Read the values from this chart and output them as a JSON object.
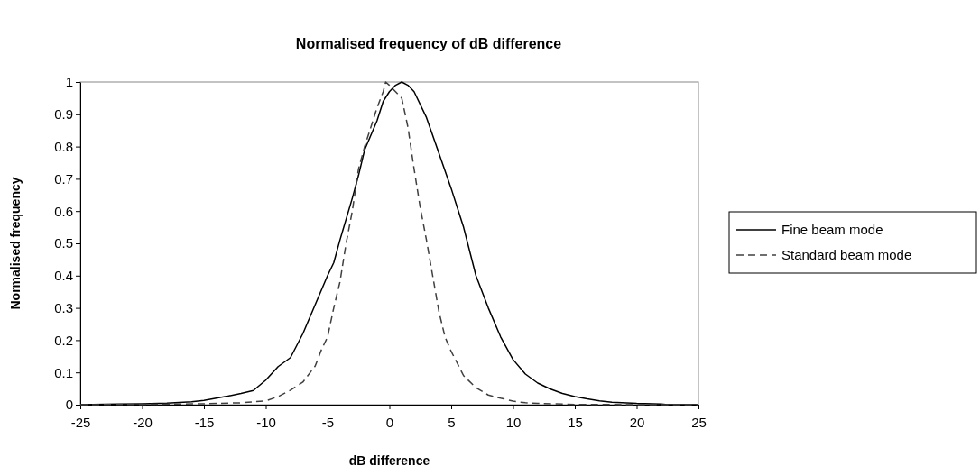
{
  "chart_data": {
    "type": "line",
    "title": "Normalised frequency of dB difference",
    "xlabel": "dB difference",
    "ylabel": "Normalised frequency",
    "xlim": [
      -25,
      25
    ],
    "xticks": [
      -25,
      -20,
      -15,
      -10,
      -5,
      0,
      5,
      10,
      15,
      20,
      25
    ],
    "ylim": [
      0,
      1
    ],
    "yticks": [
      0,
      0.1,
      0.2,
      0.3,
      0.4,
      0.5,
      0.6,
      0.7,
      0.8,
      0.9,
      1
    ],
    "legend": "right",
    "grid": false,
    "marker": "none",
    "series": [
      {
        "name": "Fine beam mode",
        "color": "#000000",
        "line_style": "solid",
        "x": [
          -25,
          -22,
          -20,
          -18,
          -16,
          -15,
          -14,
          -13,
          -12,
          -11,
          -10,
          -9,
          -8,
          -7.5,
          -7,
          -6,
          -5,
          -4.5,
          -4,
          -3,
          -2.5,
          -2,
          -1,
          -0.5,
          0,
          0.5,
          1,
          1.5,
          2,
          3,
          4,
          5,
          6,
          7,
          8,
          9,
          10,
          11,
          12,
          13,
          14,
          15,
          16,
          17,
          18,
          20,
          22,
          22.5,
          25
        ],
        "values": [
          0,
          0.002,
          0.003,
          0.005,
          0.009,
          0.013,
          0.02,
          0.027,
          0.035,
          0.044,
          0.076,
          0.118,
          0.146,
          0.183,
          0.22,
          0.31,
          0.4,
          0.44,
          0.51,
          0.64,
          0.71,
          0.79,
          0.88,
          0.94,
          0.97,
          0.99,
          1,
          0.99,
          0.97,
          0.89,
          0.78,
          0.67,
          0.55,
          0.4,
          0.3,
          0.21,
          0.14,
          0.095,
          0.067,
          0.049,
          0.035,
          0.025,
          0.018,
          0.012,
          0.008,
          0.004,
          0.002,
          0,
          0
        ]
      },
      {
        "name": "Standard beam mode",
        "color": "#404040",
        "line_style": "dashed",
        "x": [
          -25,
          -20,
          -15,
          -12,
          -10,
          -9,
          -8,
          -7,
          -6,
          -5.5,
          -5,
          -4.5,
          -4,
          -3.5,
          -3,
          -2.5,
          -2,
          -1,
          -0.5,
          -0.3,
          0,
          0.5,
          1,
          1.5,
          2,
          2.5,
          3,
          3.5,
          4,
          4.5,
          5,
          5.5,
          6,
          7,
          8,
          9,
          10,
          11,
          12,
          15,
          20,
          25
        ],
        "values": [
          0,
          0.001,
          0.003,
          0.006,
          0.012,
          0.025,
          0.045,
          0.07,
          0.12,
          0.17,
          0.21,
          0.3,
          0.38,
          0.5,
          0.6,
          0.73,
          0.8,
          0.92,
          0.97,
          1,
          0.99,
          0.97,
          0.95,
          0.86,
          0.73,
          0.61,
          0.51,
          0.4,
          0.29,
          0.21,
          0.165,
          0.128,
          0.09,
          0.053,
          0.03,
          0.02,
          0.011,
          0.006,
          0.004,
          0.001,
          0,
          0
        ]
      }
    ]
  }
}
